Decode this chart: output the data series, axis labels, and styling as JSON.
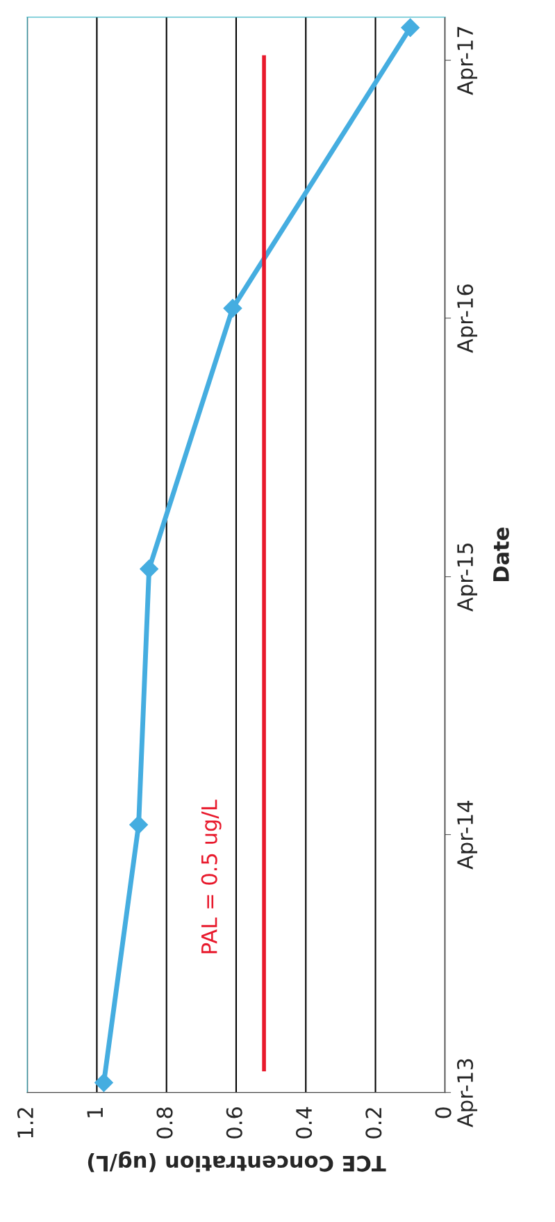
{
  "chart_data": {
    "type": "line",
    "orientation": "horizontal",
    "xlabel": "TCE Concentration (ug/L)",
    "ylabel": "Date",
    "xlim": [
      1.2,
      0
    ],
    "xticks": [
      1.2,
      1,
      0.8,
      0.6,
      0.4,
      0.2,
      0
    ],
    "ylim": [
      "2013-04-01",
      "2017-06-01"
    ],
    "yticks": [
      {
        "value": "2013-04-01",
        "label": "Apr-13"
      },
      {
        "value": "2014-04-01",
        "label": "Apr-14"
      },
      {
        "value": "2015-04-01",
        "label": "Apr-15"
      },
      {
        "value": "2016-04-01",
        "label": "Apr-16"
      },
      {
        "value": "2017-04-01",
        "label": "Apr-17"
      }
    ],
    "grid": "x",
    "series": [
      {
        "color": "#45ade0",
        "marker": "diamond",
        "x": [
          "2013-04-15",
          "2014-04-15",
          "2015-04-12",
          "2016-04-15",
          "2017-05-17"
        ],
        "values": [
          0.98,
          0.88,
          0.85,
          0.61,
          0.1
        ]
      },
      {
        "color": "#e8192c",
        "marker": "none",
        "x": [
          "2013-05-01",
          "2017-04-08"
        ],
        "values": [
          0.52,
          0.52
        ]
      }
    ],
    "annotations": [
      "PAL = 0.5 ug/L"
    ]
  }
}
